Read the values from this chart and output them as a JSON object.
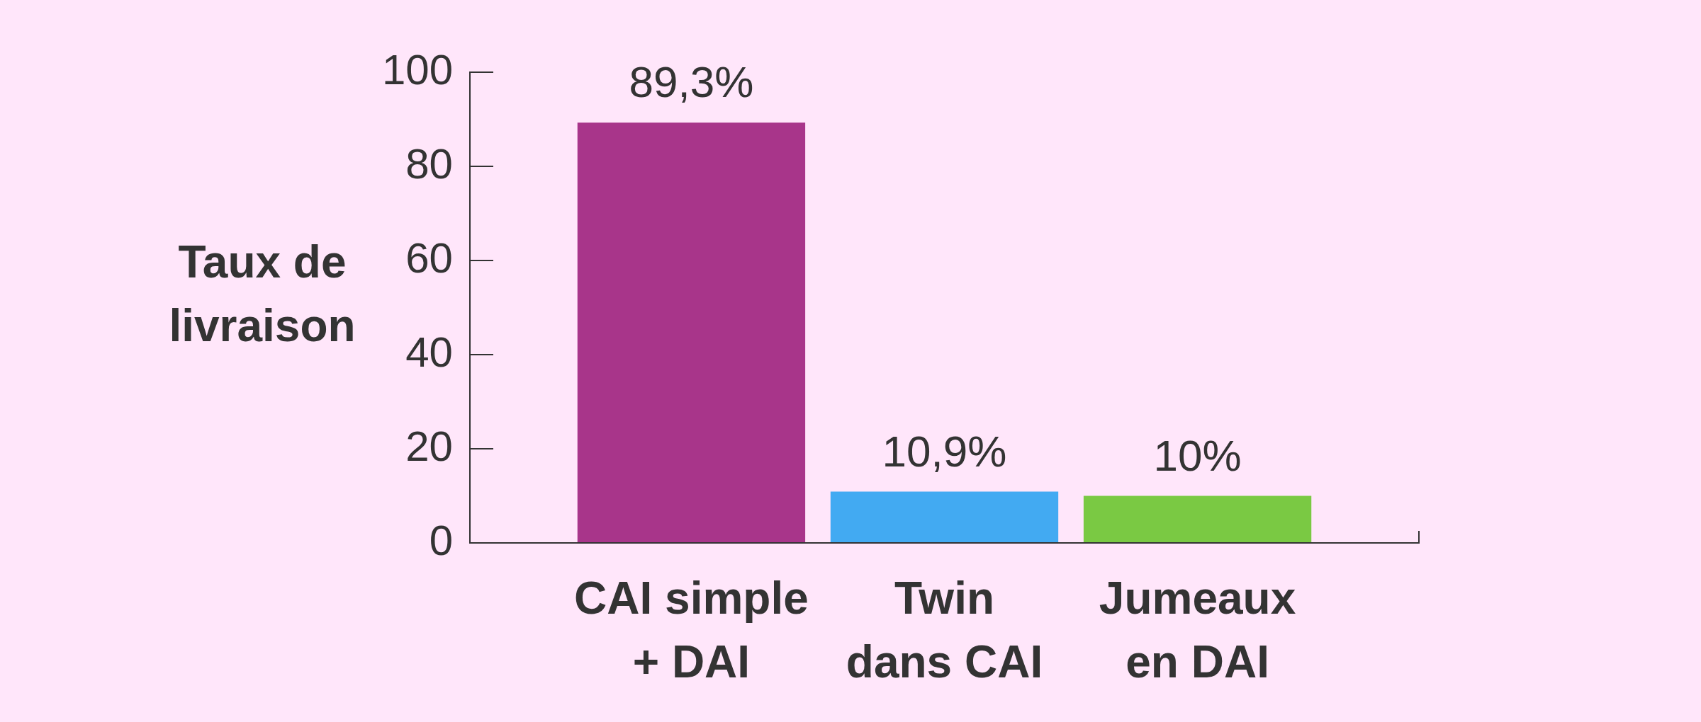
{
  "chart_data": {
    "type": "bar",
    "ylabel": "Taux de\nlivraison",
    "categories": [
      "CAI simple\n+ DAI",
      "Twin\ndans CAI",
      "Jumeaux\nen DAI"
    ],
    "values": [
      89.3,
      10.9,
      10
    ],
    "colors": [
      "#a8358a",
      "#42aaf2",
      "#7ac943"
    ],
    "value_labels": [
      "89,3%",
      "10,9%",
      "10%"
    ],
    "ylim": [
      0,
      100
    ],
    "yticks": [
      0,
      20,
      40,
      60,
      80,
      100
    ]
  }
}
